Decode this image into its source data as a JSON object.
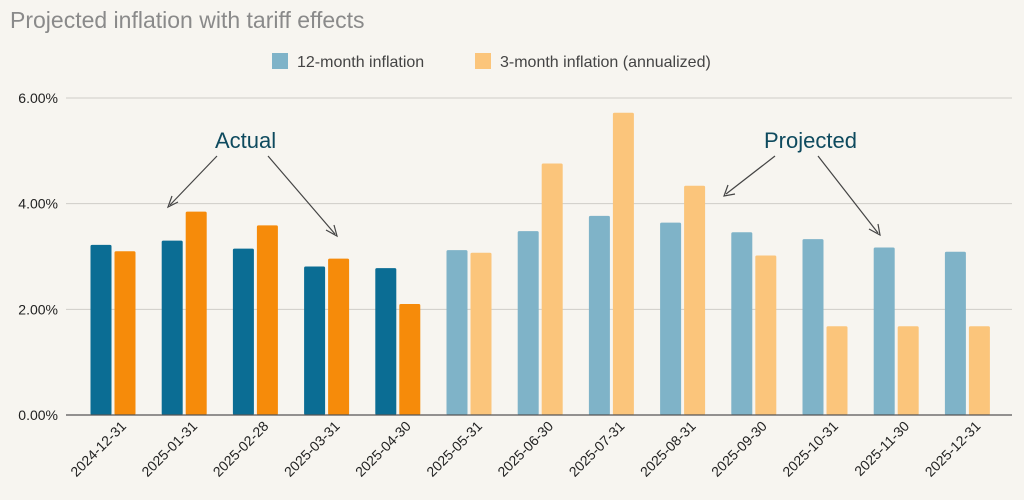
{
  "chart_data": {
    "type": "bar",
    "title": "Projected inflation with tariff effects",
    "xlabel": "",
    "ylabel": "",
    "ylim": [
      0,
      0.06
    ],
    "yticks": [
      "0.00%",
      "2.00%",
      "4.00%",
      "6.00%"
    ],
    "ytick_values": [
      0,
      0.02,
      0.04,
      0.06
    ],
    "grid": true,
    "legend_position": "top-center",
    "categories": [
      "2024-12-31",
      "2025-01-31",
      "2025-02-28",
      "2025-03-31",
      "2025-04-30",
      "2025-05-31",
      "2025-06-30",
      "2025-07-31",
      "2025-08-31",
      "2025-09-30",
      "2025-10-31",
      "2025-11-30",
      "2025-12-31"
    ],
    "series": [
      {
        "name": "12-month inflation",
        "color_actual": "#0b6d94",
        "color_projected": "#7fb3c8",
        "values": [
          0.0322,
          0.033,
          0.0315,
          0.0281,
          0.0278,
          0.0312,
          0.0348,
          0.0377,
          0.0364,
          0.0346,
          0.0333,
          0.0317,
          0.0309
        ]
      },
      {
        "name": "3-month inflation (annualized)",
        "color_actual": "#f68b0a",
        "color_projected": "#fbc57b",
        "values": [
          0.031,
          0.0385,
          0.0359,
          0.0296,
          0.021,
          0.0307,
          0.0476,
          0.0572,
          0.0434,
          0.0302,
          0.0168,
          0.0168,
          0.0168
        ]
      }
    ],
    "actual_count": 5,
    "annotations": [
      {
        "text": "Actual"
      },
      {
        "text": "Projected"
      }
    ]
  }
}
